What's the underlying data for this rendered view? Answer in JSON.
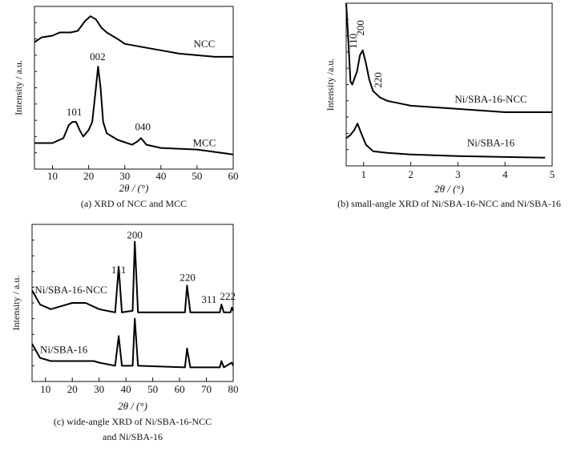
{
  "chart_data": [
    {
      "type": "line",
      "title": "(a) XRD of NCC and MCC",
      "xlabel": "2θ / (°)",
      "ylabel": "Intensity / a.u.",
      "xlim": [
        5,
        60
      ],
      "ylim": [
        0,
        100
      ],
      "xticks": [
        10,
        20,
        30,
        40,
        50,
        60
      ],
      "series": [
        {
          "name": "NCC",
          "x": [
            5,
            7,
            10,
            12,
            15,
            17,
            19,
            20.5,
            22,
            23.5,
            25,
            28,
            30,
            35,
            40,
            45,
            50,
            55,
            60
          ],
          "y": [
            78,
            81,
            82,
            84,
            84,
            85,
            91,
            94,
            92,
            87,
            84,
            80,
            77,
            75,
            73,
            71,
            70,
            69,
            69
          ]
        },
        {
          "name": "MCC",
          "x": [
            5,
            10,
            13,
            14.5,
            15.5,
            16.5,
            17.5,
            18.5,
            20,
            21,
            22,
            22.6,
            23.3,
            24,
            25,
            28,
            32,
            33.5,
            34.5,
            36,
            40,
            50,
            60
          ],
          "y": [
            16,
            16,
            19,
            27,
            29,
            29,
            24,
            20,
            24,
            29,
            50,
            63,
            50,
            29,
            22,
            18,
            15,
            17,
            19,
            15,
            13,
            12,
            9
          ]
        }
      ],
      "annotations": [
        {
          "text": "NCC",
          "x": 52,
          "y": 75
        },
        {
          "text": "002",
          "x": 22.5,
          "y": 67
        },
        {
          "text": "101",
          "x": 16,
          "y": 33
        },
        {
          "text": "040",
          "x": 35,
          "y": 24
        },
        {
          "text": "MCC",
          "x": 52,
          "y": 14
        }
      ]
    },
    {
      "type": "line",
      "title": "(b) small-angle XRD of Ni/SBA-16-NCC and Ni/SBA-16",
      "xlabel": "2θ / (°)",
      "ylabel": "Intensity /a.u.",
      "xlim": [
        0.63,
        5
      ],
      "ylim": [
        0,
        100
      ],
      "xticks": [
        1,
        2,
        3,
        4,
        5
      ],
      "series": [
        {
          "name": "Ni/SBA-16-NCC",
          "x": [
            0.63,
            0.68,
            0.72,
            0.76,
            0.82,
            0.86,
            0.92,
            0.98,
            1.05,
            1.12,
            1.2,
            1.35,
            1.5,
            2,
            3,
            4,
            5
          ],
          "y": [
            100,
            75,
            52,
            50,
            55,
            58,
            68,
            71,
            63,
            53,
            46,
            42,
            40,
            37,
            35,
            33,
            33
          ]
        },
        {
          "name": "Ni/SBA-16",
          "x": [
            0.63,
            0.72,
            0.8,
            0.87,
            0.95,
            1.05,
            1.2,
            1.5,
            2,
            3,
            4.85
          ],
          "y": [
            17,
            19,
            22,
            26,
            20,
            13,
            9,
            8,
            7,
            6,
            5
          ]
        }
      ],
      "annotations": [
        {
          "text": "110",
          "x": 0.85,
          "y": 72,
          "rotate": true
        },
        {
          "text": "200",
          "x": 1.0,
          "y": 80,
          "rotate": true
        },
        {
          "text": "220",
          "x": 1.38,
          "y": 48,
          "rotate": true
        },
        {
          "text": "Ni/SBA-16-NCC",
          "x": 3.7,
          "y": 39
        },
        {
          "text": "Ni/SBA-16",
          "x": 3.7,
          "y": 12
        }
      ]
    },
    {
      "type": "line",
      "title": "(c) wide-angle XRD of Ni/SBA-16-NCC",
      "title2": "and Ni/SBA-16",
      "xlabel": "2θ / (°)",
      "ylabel": "Intensity / a.u.",
      "xlim": [
        5,
        80
      ],
      "ylim": [
        0,
        100
      ],
      "xticks": [
        10,
        20,
        30,
        40,
        50,
        60,
        70,
        80
      ],
      "series": [
        {
          "name": "Ni/SBA-16-NCC",
          "x": [
            5,
            8,
            12,
            20,
            25,
            30,
            36,
            37.3,
            38.5,
            42.5,
            43.3,
            44.5,
            50,
            62,
            62.8,
            64,
            75,
            75.6,
            76.5,
            79,
            79.5,
            80
          ],
          "y": [
            58,
            49,
            46,
            50,
            50,
            46,
            44,
            73,
            44,
            45,
            89,
            44,
            44,
            44,
            61,
            44,
            44,
            49,
            44,
            44,
            47,
            45
          ]
        },
        {
          "name": "Ni/SBA-16",
          "x": [
            5,
            8,
            12,
            20,
            28,
            30,
            36,
            37.3,
            38.5,
            42.5,
            43.3,
            44.5,
            62,
            62.8,
            64,
            75,
            75.6,
            76.5,
            79.5,
            80
          ],
          "y": [
            24,
            15,
            13,
            13,
            13,
            12,
            10,
            29,
            10,
            10,
            40,
            10,
            9,
            21,
            9,
            9,
            13,
            9,
            12,
            10
          ]
        }
      ],
      "annotations": [
        {
          "text": "111",
          "x": 37.3,
          "y": 69
        },
        {
          "text": "200",
          "x": 43.3,
          "y": 91
        },
        {
          "text": "220",
          "x": 63,
          "y": 64
        },
        {
          "text": "311",
          "x": 71,
          "y": 50
        },
        {
          "text": "222",
          "x": 78,
          "y": 52
        },
        {
          "text": "Ni/SBA-16-NCC",
          "x": 6,
          "y": 56,
          "anchor": "start"
        },
        {
          "text": "Ni/SBA-16",
          "x": 8,
          "y": 18,
          "anchor": "start"
        }
      ]
    }
  ]
}
